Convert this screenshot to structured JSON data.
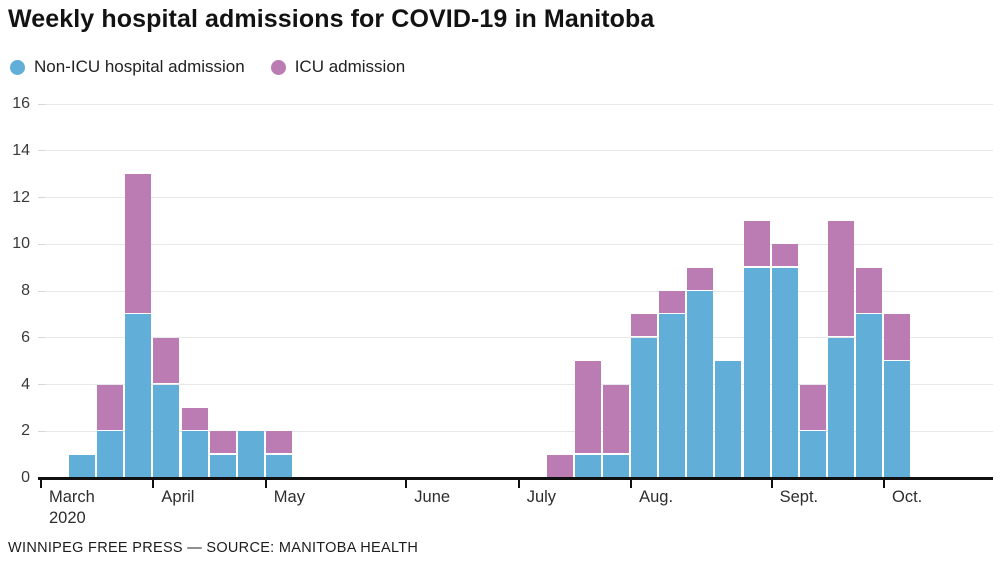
{
  "header": {
    "title": "Weekly hospital admissions for COVID-19 in Manitoba"
  },
  "footer": {
    "credit": "WINNIPEG FREE PRESS — SOURCE: MANITOBA HEALTH"
  },
  "chart_data": {
    "type": "bar",
    "stacked": true,
    "title": "Weekly hospital admissions for COVID-19 in Manitoba",
    "xlabel": "",
    "ylabel": "",
    "ylim": [
      0,
      16
    ],
    "yticks": [
      0,
      2,
      4,
      6,
      8,
      10,
      12,
      14,
      16
    ],
    "grid": true,
    "legend_position": "top-left",
    "x_unit": "week",
    "total_weeks": 31,
    "month_ticks": [
      {
        "label": "March",
        "sublabel": "2020",
        "week_offset": 0
      },
      {
        "label": "April",
        "sublabel": "",
        "week_offset": 4
      },
      {
        "label": "May",
        "sublabel": "",
        "week_offset": 8
      },
      {
        "label": "June",
        "sublabel": "",
        "week_offset": 13
      },
      {
        "label": "July",
        "sublabel": "",
        "week_offset": 17
      },
      {
        "label": "Aug.",
        "sublabel": "",
        "week_offset": 21
      },
      {
        "label": "Sept.",
        "sublabel": "",
        "week_offset": 26
      },
      {
        "label": "Oct.",
        "sublabel": "",
        "week_offset": 30
      }
    ],
    "series": [
      {
        "name": "Non-ICU hospital admission",
        "color": "#61aed8",
        "values": [
          0,
          1,
          2,
          7,
          4,
          2,
          1,
          2,
          1,
          0,
          0,
          0,
          0,
          0,
          0,
          0,
          0,
          0,
          0,
          1,
          1,
          6,
          7,
          8,
          5,
          9,
          9,
          2,
          6,
          7,
          5
        ]
      },
      {
        "name": "ICU admission",
        "color": "#ba7cb2",
        "values": [
          0,
          0,
          2,
          6,
          2,
          1,
          1,
          0,
          1,
          0,
          0,
          0,
          0,
          0,
          0,
          0,
          0,
          0,
          1,
          4,
          3,
          1,
          1,
          1,
          0,
          2,
          1,
          2,
          5,
          2,
          2
        ]
      }
    ],
    "weekly_totals": [
      0,
      1,
      4,
      13,
      6,
      3,
      2,
      2,
      2,
      0,
      0,
      0,
      0,
      0,
      0,
      0,
      0,
      0,
      1,
      5,
      4,
      7,
      8,
      9,
      5,
      11,
      10,
      4,
      11,
      9,
      7
    ]
  },
  "style": {
    "gridline_color": "#e8e8e8",
    "gridline_stub_color": "#d6d6d6",
    "axis_color": "#111111",
    "background": "#ffffff"
  }
}
